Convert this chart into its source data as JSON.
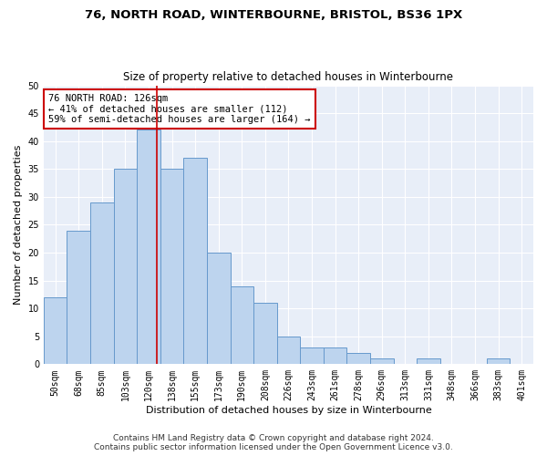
{
  "title": "76, NORTH ROAD, WINTERBOURNE, BRISTOL, BS36 1PX",
  "subtitle": "Size of property relative to detached houses in Winterbourne",
  "xlabel": "Distribution of detached houses by size in Winterbourne",
  "ylabel": "Number of detached properties",
  "categories": [
    "50sqm",
    "68sqm",
    "85sqm",
    "103sqm",
    "120sqm",
    "138sqm",
    "155sqm",
    "173sqm",
    "190sqm",
    "208sqm",
    "226sqm",
    "243sqm",
    "261sqm",
    "278sqm",
    "296sqm",
    "313sqm",
    "331sqm",
    "348sqm",
    "366sqm",
    "383sqm",
    "401sqm"
  ],
  "values": [
    12,
    24,
    29,
    35,
    42,
    35,
    37,
    20,
    14,
    11,
    5,
    3,
    3,
    2,
    1,
    0,
    1,
    0,
    0,
    1,
    0
  ],
  "bar_color": "#bdd4ee",
  "bar_edge_color": "#6699cc",
  "background_color": "#e8eef8",
  "vline_color": "#cc0000",
  "annotation_box_color": "#cc0000",
  "ylim": [
    0,
    50
  ],
  "yticks": [
    0,
    5,
    10,
    15,
    20,
    25,
    30,
    35,
    40,
    45,
    50
  ],
  "footer_line1": "Contains HM Land Registry data © Crown copyright and database right 2024.",
  "footer_line2": "Contains public sector information licensed under the Open Government Licence v3.0.",
  "title_fontsize": 9.5,
  "subtitle_fontsize": 8.5,
  "axis_label_fontsize": 8,
  "tick_fontsize": 7,
  "annotation_fontsize": 7.5,
  "footer_fontsize": 6.5
}
